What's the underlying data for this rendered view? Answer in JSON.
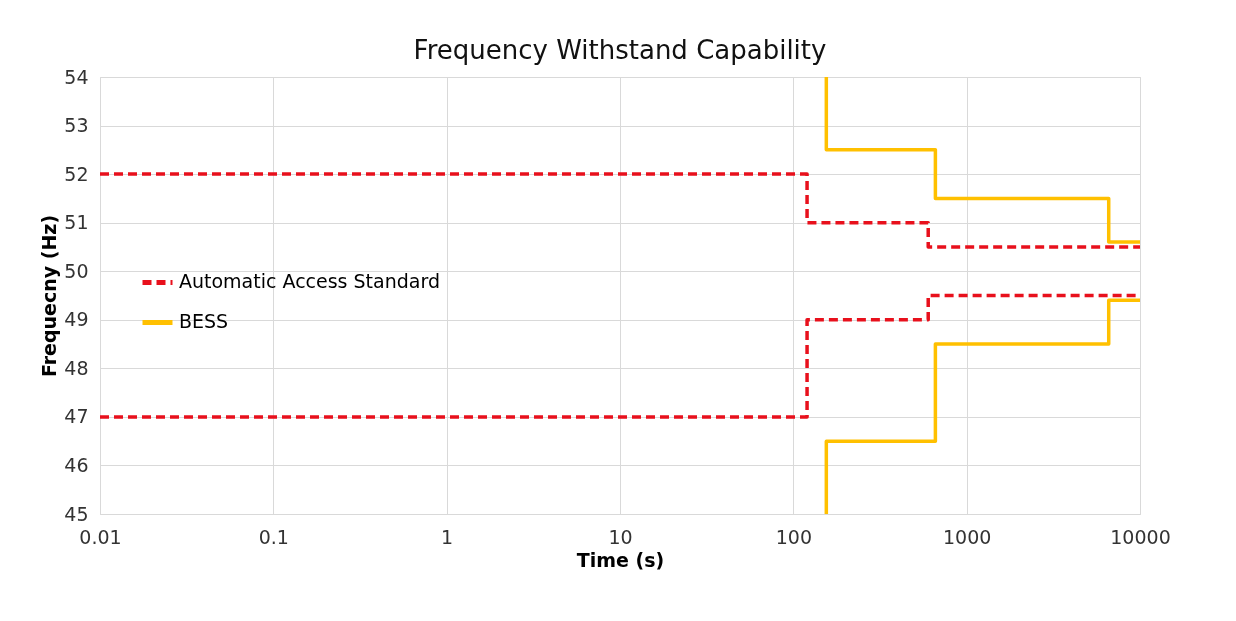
{
  "chart_data": {
    "type": "step",
    "title": "Frequency Withstand Capability",
    "xlabel": "Time (s)",
    "ylabel": "Frequecny (Hz)",
    "log": "x",
    "xlim": [
      0.01,
      10000
    ],
    "xticks": [
      0.01,
      0.1,
      1,
      10,
      100,
      1000,
      10000
    ],
    "ylim": [
      45,
      54
    ],
    "yticks": [
      45,
      46,
      47,
      48,
      49,
      50,
      51,
      52,
      53,
      54
    ],
    "grid": true,
    "legend": "left",
    "marker": "none",
    "series": [
      {
        "name": "Automatic Access Standard",
        "color": "#e8101c",
        "line_style": "dashed",
        "x": [
          0.01,
          120,
          600,
          10000,
          null,
          0.01,
          120,
          600,
          10000
        ],
        "values": [
          52,
          51,
          50.5,
          50.5,
          null,
          47,
          49,
          49.5,
          49.5
        ]
      },
      {
        "name": "BESS",
        "color": "#ffc000",
        "line_style": "solid",
        "x": [
          155,
          155,
          660,
          6600,
          10000,
          null,
          155,
          155,
          660,
          6600,
          10000
        ],
        "values": [
          54,
          52.5,
          51.5,
          50.6,
          50.6,
          null,
          45,
          46.5,
          48.5,
          49.4,
          49.4
        ]
      }
    ]
  }
}
